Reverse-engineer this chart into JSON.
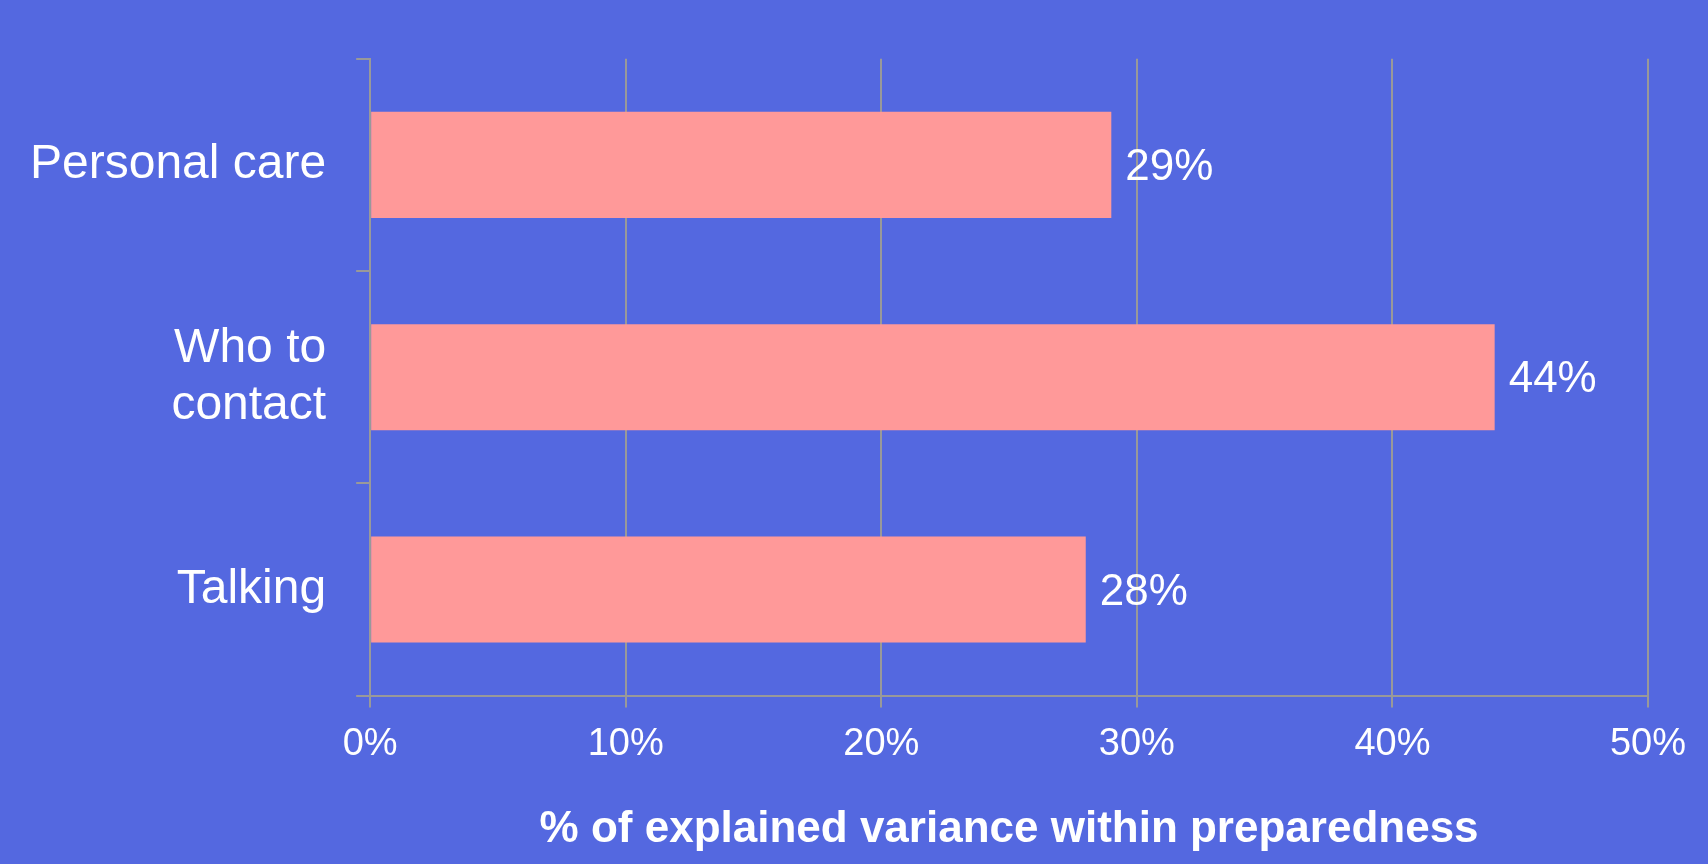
{
  "chart_data": {
    "type": "bar",
    "orientation": "horizontal",
    "xlabel": "% of explained variance within preparedness",
    "categories": [
      "Personal care",
      "Who to contact",
      "Talking"
    ],
    "values": [
      29,
      44,
      28
    ],
    "color": "#ff9999",
    "value_labels": [
      "29%",
      "44%",
      "28%"
    ],
    "xlim": [
      0,
      50
    ],
    "xticks": [
      {
        "value": 0,
        "label": "0%"
      },
      {
        "value": 10,
        "label": "10%"
      },
      {
        "value": 20,
        "label": "20%"
      },
      {
        "value": 30,
        "label": "30%"
      },
      {
        "value": 40,
        "label": "40%"
      },
      {
        "value": 50,
        "label": "50%"
      }
    ],
    "grid": "x",
    "legend": false
  }
}
